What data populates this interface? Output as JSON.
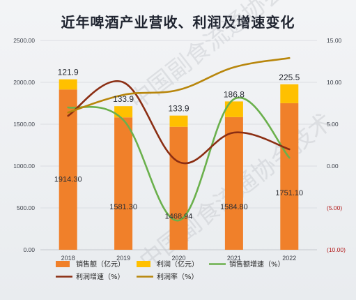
{
  "chart_data": {
    "type": "bar",
    "title": "近年啤酒产业营收、利润及增速变化",
    "categories": [
      "2018",
      "2019",
      "2020",
      "2021",
      "2022"
    ],
    "left_axis": {
      "ylim": [
        0,
        2500
      ],
      "ticks": [
        "0.00",
        "500.00",
        "1000.00",
        "1500.00",
        "2000.00",
        "2500.00"
      ]
    },
    "right_axis": {
      "ylim": [
        -10,
        15
      ],
      "ticks": [
        "(10.00)",
        "(5.00)",
        "0.00",
        "5.00",
        "10.00",
        "15.00"
      ],
      "tick_values": [
        -10,
        -5,
        0,
        5,
        10,
        15
      ]
    },
    "bar_series": [
      {
        "name": "销售额（亿元）",
        "color": "#f0802a",
        "values": [
          1914.3,
          1581.3,
          1468.94,
          1584.8,
          1751.1
        ],
        "labels": [
          "1914.30",
          "1581.30",
          "1468.94",
          "1584.80",
          "1751.10"
        ]
      },
      {
        "name": "利润（亿元）",
        "color": "#ffc000",
        "values": [
          121.9,
          133.9,
          133.9,
          186.8,
          225.5
        ],
        "labels": [
          "121.9",
          "133.9",
          "133.9",
          "186.8",
          "225.5"
        ]
      }
    ],
    "line_series": [
      {
        "name": "销售额增速（%）",
        "color": "#6ab04c",
        "values": [
          7.0,
          5.5,
          -6.5,
          8.0,
          1.0
        ]
      },
      {
        "name": "利润增速（%）",
        "color": "#8b2e13",
        "values": [
          6.0,
          10.0,
          0.5,
          4.0,
          2.0
        ]
      },
      {
        "name": "利润率（%）",
        "color": "#b8860b",
        "values": [
          6.4,
          8.5,
          9.1,
          11.8,
          12.9
        ]
      }
    ]
  },
  "watermark": "中国副食流通协会技术"
}
